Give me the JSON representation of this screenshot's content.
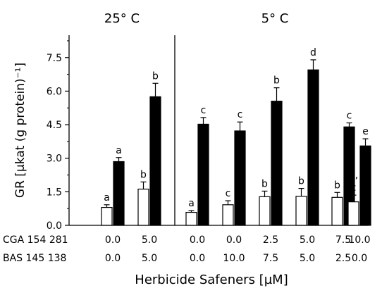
{
  "chart_data": {
    "type": "bar",
    "panel_titles": [
      "25° C",
      "5° C"
    ],
    "ylabel": "GR [µkat (g protein)⁻¹]",
    "xlabel": "Herbicide Safeners [µM]",
    "ylim": [
      0,
      8.5
    ],
    "yticks": [
      "0.0",
      "1.5",
      "3.0",
      "4.5",
      "6.0",
      "7.5"
    ],
    "row_labels": [
      "CGA 154 281",
      "BAS 145 138"
    ],
    "groups": [
      {
        "panel": "25° C",
        "cga": "0.0",
        "bas": "0.0",
        "white": 0.8,
        "white_err": 0.12,
        "white_label": "a",
        "black": 2.85,
        "black_err": 0.18,
        "black_label": "a"
      },
      {
        "panel": "25° C",
        "cga": "5.0",
        "bas": "5.0",
        "white": 1.62,
        "white_err": 0.32,
        "white_label": "b",
        "black": 5.75,
        "black_err": 0.6,
        "black_label": "b"
      },
      {
        "panel": "5° C",
        "cga": "0.0",
        "bas": "0.0",
        "white": 0.58,
        "white_err": 0.08,
        "white_label": "a",
        "black": 4.52,
        "black_err": 0.3,
        "black_label": "c"
      },
      {
        "panel": "5° C",
        "cga": "0.0",
        "bas": "10.0",
        "white": 0.92,
        "white_err": 0.18,
        "white_label": "c",
        "black": 4.22,
        "black_err": 0.4,
        "black_label": "c"
      },
      {
        "panel": "5° C",
        "cga": "2.5",
        "bas": "7.5",
        "white": 1.28,
        "white_err": 0.25,
        "white_label": "b",
        "black": 5.55,
        "black_err": 0.6,
        "black_label": "b"
      },
      {
        "panel": "5° C",
        "cga": "5.0",
        "bas": "5.0",
        "white": 1.3,
        "white_err": 0.35,
        "white_label": "b",
        "black": 6.95,
        "black_err": 0.45,
        "black_label": "d"
      },
      {
        "panel": "5° C",
        "cga": "7.5",
        "bas": "2.5",
        "white": 1.25,
        "white_err": 0.22,
        "white_label": "b",
        "black": 4.4,
        "black_err": 0.18,
        "black_label": "c"
      },
      {
        "panel": "5° C",
        "cga": "10.0",
        "bas": "0.0",
        "white": 1.05,
        "white_err": 0.3,
        "white_label": "b,\nc",
        "black": 3.55,
        "black_err": 0.32,
        "black_label": "e"
      }
    ],
    "series": [
      {
        "fill": "#ffffff"
      },
      {
        "fill": "#000000"
      }
    ]
  }
}
